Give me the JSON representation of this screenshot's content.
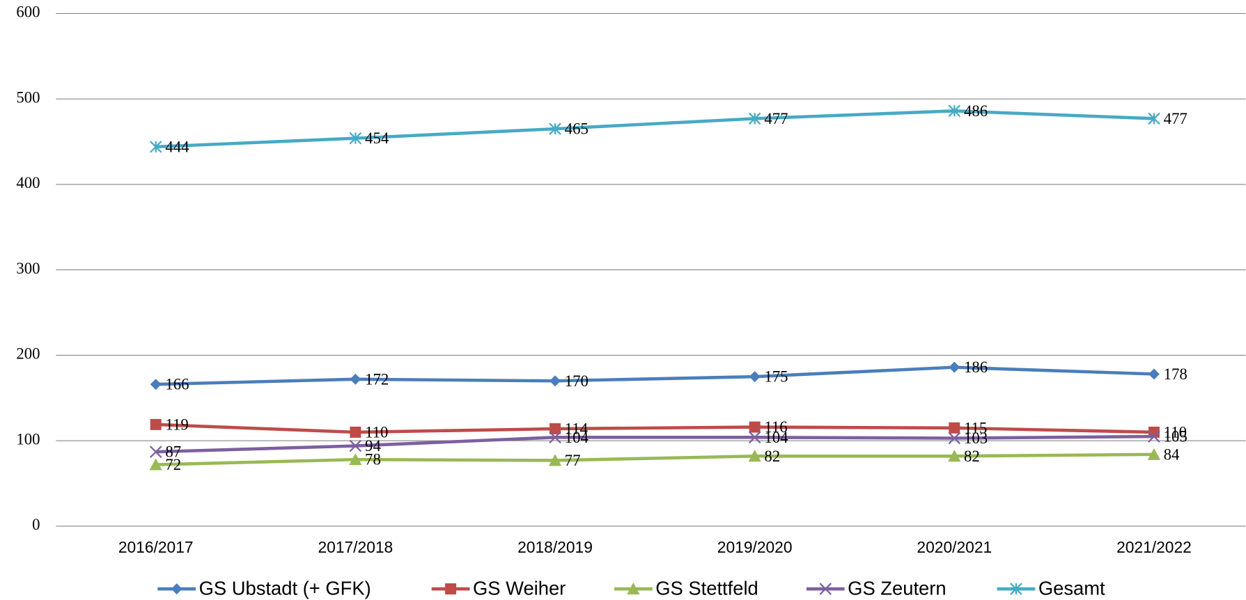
{
  "chart_data": {
    "type": "line",
    "categories": [
      "2016/2017",
      "2017/2018",
      "2018/2019",
      "2019/2020",
      "2020/2021",
      "2021/2022"
    ],
    "series": [
      {
        "name": "GS Ubstadt (+ GFK)",
        "color": "#4a7ebb",
        "marker": "diamond",
        "values": [
          166,
          172,
          170,
          175,
          186,
          178
        ]
      },
      {
        "name": "GS Weiher",
        "color": "#be4b48",
        "marker": "square",
        "values": [
          119,
          110,
          114,
          116,
          115,
          110
        ]
      },
      {
        "name": "GS Stettfeld",
        "color": "#98b954",
        "marker": "triangle",
        "values": [
          72,
          78,
          77,
          82,
          82,
          84
        ]
      },
      {
        "name": "GS Zeutern",
        "color": "#7d5fa0",
        "marker": "x",
        "values": [
          87,
          94,
          104,
          104,
          103,
          105
        ]
      },
      {
        "name": "Gesamt",
        "color": "#46aac5",
        "marker": "asterisk",
        "values": [
          444,
          454,
          465,
          477,
          486,
          477
        ]
      }
    ],
    "ylim": [
      0,
      600
    ],
    "yticks": [
      0,
      100,
      200,
      300,
      400,
      500,
      600
    ],
    "grid": true,
    "legend": "bottom"
  }
}
